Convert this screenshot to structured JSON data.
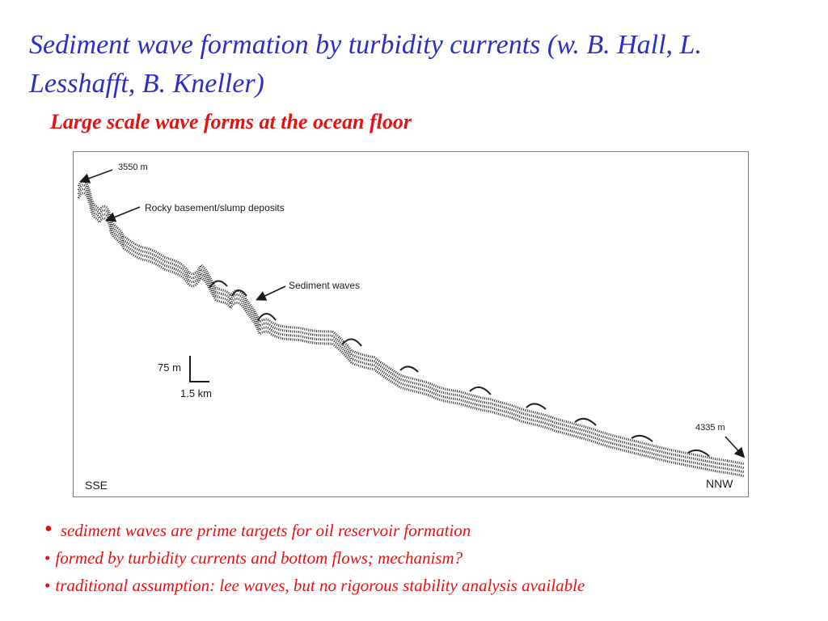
{
  "slide": {
    "title": "Sediment wave formation by turbidity currents (w. B. Hall, L. Lesshafft, B. Kneller)",
    "subtitle": "Large scale wave forms at the ocean floor"
  },
  "figure": {
    "depth_top": "3550 m",
    "depth_bottom": "4335 m",
    "annotation_rocky": "Rocky basement/slump deposits",
    "annotation_waves": "Sediment waves",
    "scale_vertical": "75 m",
    "scale_horizontal": "1.5 km",
    "direction_left": "SSE",
    "direction_right": "NNW"
  },
  "bullets": [
    {
      "dot": "•",
      "text": "sediment waves are prime targets for oil reservoir formation"
    },
    {
      "dot": "•",
      "text": "formed by turbidity currents and bottom flows; mechanism?"
    },
    {
      "dot": "•",
      "text": "traditional assumption: lee waves, but no rigorous stability analysis available"
    }
  ],
  "colors": {
    "title": "#2b2fc7",
    "accent": "#e81010",
    "ink": "#1a1a1a"
  }
}
